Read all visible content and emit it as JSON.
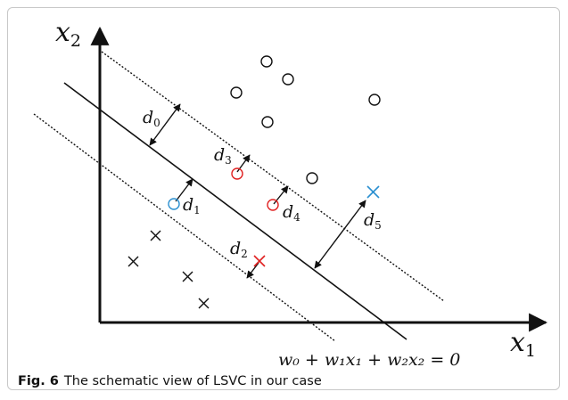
{
  "figure": {
    "label": "Fig. 6",
    "caption": "The schematic view of LSVC in our case"
  },
  "axes": {
    "x_label": "x",
    "x_sub": "1",
    "y_label": "x",
    "y_sub": "2"
  },
  "equation": "w₀ + w₁x₁ + w₂x₂ = 0",
  "distances": [
    {
      "name": "d",
      "sub": "0"
    },
    {
      "name": "d",
      "sub": "1"
    },
    {
      "name": "d",
      "sub": "2"
    },
    {
      "name": "d",
      "sub": "3"
    },
    {
      "name": "d",
      "sub": "4"
    },
    {
      "name": "d",
      "sub": "5"
    }
  ],
  "colors": {
    "black": "#111111",
    "red": "#e02020",
    "blue": "#2a8fd0"
  },
  "points": {
    "circles": [
      "black",
      "black",
      "black",
      "black",
      "black",
      "black",
      "black",
      "red",
      "red",
      "blue"
    ],
    "crosses": [
      "black",
      "black",
      "black",
      "black",
      "red",
      "blue"
    ]
  }
}
